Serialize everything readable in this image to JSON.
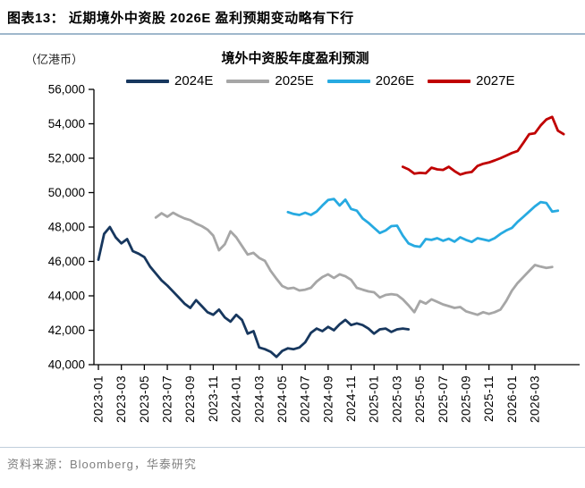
{
  "header": {
    "title": "图表13：  近期境外中资股 2026E 盈利预期变动略有下行"
  },
  "footer": {
    "source": "资料来源：Bloomberg，华泰研究"
  },
  "chart_data": {
    "type": "line",
    "title": "境外中资股年度盈利预测",
    "unit_label": "（亿港币）",
    "xlabel": "",
    "ylabel": "",
    "grid": false,
    "legend_position": "top",
    "ylim": [
      40000,
      56000
    ],
    "y_tick_step": 2000,
    "y_ticks": [
      "56,000",
      "54,000",
      "52,000",
      "50,000",
      "48,000",
      "46,000",
      "44,000",
      "42,000",
      "40,000"
    ],
    "x_ticks": [
      "2023-01",
      "2023-03",
      "2023-05",
      "2023-07",
      "2023-09",
      "2023-11",
      "2024-01",
      "2024-03",
      "2024-05",
      "2024-07",
      "2024-09",
      "2024-11",
      "2025-01",
      "2025-03",
      "2025-05",
      "2025-07",
      "2025-09",
      "2025-11",
      "2026-01",
      "2026-03"
    ],
    "x_tick_month_interval": 2,
    "x_axis_note": "values sampled at half-month resolution; index 0 = 2023-01",
    "axis_color": "#000000",
    "series": [
      {
        "name": "2024E",
        "color": "#17375e",
        "start_half_month_index": 0,
        "values_half_monthly": [
          46100,
          47600,
          48000,
          47400,
          47050,
          47300,
          46600,
          46450,
          46250,
          45700,
          45300,
          44900,
          44600,
          44250,
          43900,
          43550,
          43300,
          43750,
          43400,
          43050,
          42900,
          43200,
          42750,
          42500,
          42900,
          42600,
          41800,
          41950,
          41000,
          40900,
          40750,
          40450,
          40800,
          40950,
          40900,
          41000,
          41300,
          41850,
          42100,
          41950,
          42200,
          42000,
          42350,
          42600,
          42300,
          42400,
          42300,
          42100,
          41800,
          42050,
          42100,
          41900,
          42050,
          42100,
          42050
        ]
      },
      {
        "name": "2025E",
        "color": "#a6a6a6",
        "start_half_month_index": 10,
        "values_half_monthly": [
          48550,
          48800,
          48600,
          48830,
          48650,
          48500,
          48400,
          48200,
          48050,
          47850,
          47500,
          46650,
          47000,
          47750,
          47400,
          46900,
          46400,
          46500,
          46200,
          46030,
          45450,
          44990,
          44570,
          44420,
          44470,
          44310,
          44360,
          44470,
          44830,
          45090,
          45250,
          45040,
          45250,
          45140,
          44930,
          44470,
          44360,
          44260,
          44210,
          43900,
          44050,
          44100,
          44050,
          43800,
          43450,
          43050,
          43700,
          43550,
          43800,
          43650,
          43500,
          43400,
          43300,
          43350,
          43100,
          43000,
          42900,
          43050,
          42950,
          43050,
          43200,
          43700,
          44300,
          44750,
          45100,
          45450,
          45790,
          45700,
          45620,
          45680
        ]
      },
      {
        "name": "2026E",
        "color": "#27aae1",
        "start_half_month_index": 33,
        "values_half_monthly": [
          48870,
          48760,
          48700,
          48830,
          48700,
          48900,
          49250,
          49570,
          49630,
          49250,
          49590,
          49050,
          48950,
          48500,
          48250,
          47950,
          47650,
          47800,
          48050,
          48080,
          47500,
          47050,
          46900,
          46850,
          47300,
          47250,
          47350,
          47200,
          47320,
          47150,
          47400,
          47250,
          47130,
          47350,
          47280,
          47200,
          47350,
          47600,
          47800,
          47950,
          48300,
          48600,
          48900,
          49200,
          49450,
          49400,
          48900,
          48950
        ]
      },
      {
        "name": "2027E",
        "color": "#c00000",
        "start_half_month_index": 53,
        "values_half_monthly": [
          51500,
          51350,
          51100,
          51150,
          51120,
          51450,
          51350,
          51320,
          51500,
          51250,
          51050,
          51150,
          51200,
          51550,
          51680,
          51750,
          51870,
          52000,
          52150,
          52300,
          52420,
          52900,
          53400,
          53450,
          53900,
          54250,
          54400,
          53600,
          53400
        ]
      }
    ]
  }
}
